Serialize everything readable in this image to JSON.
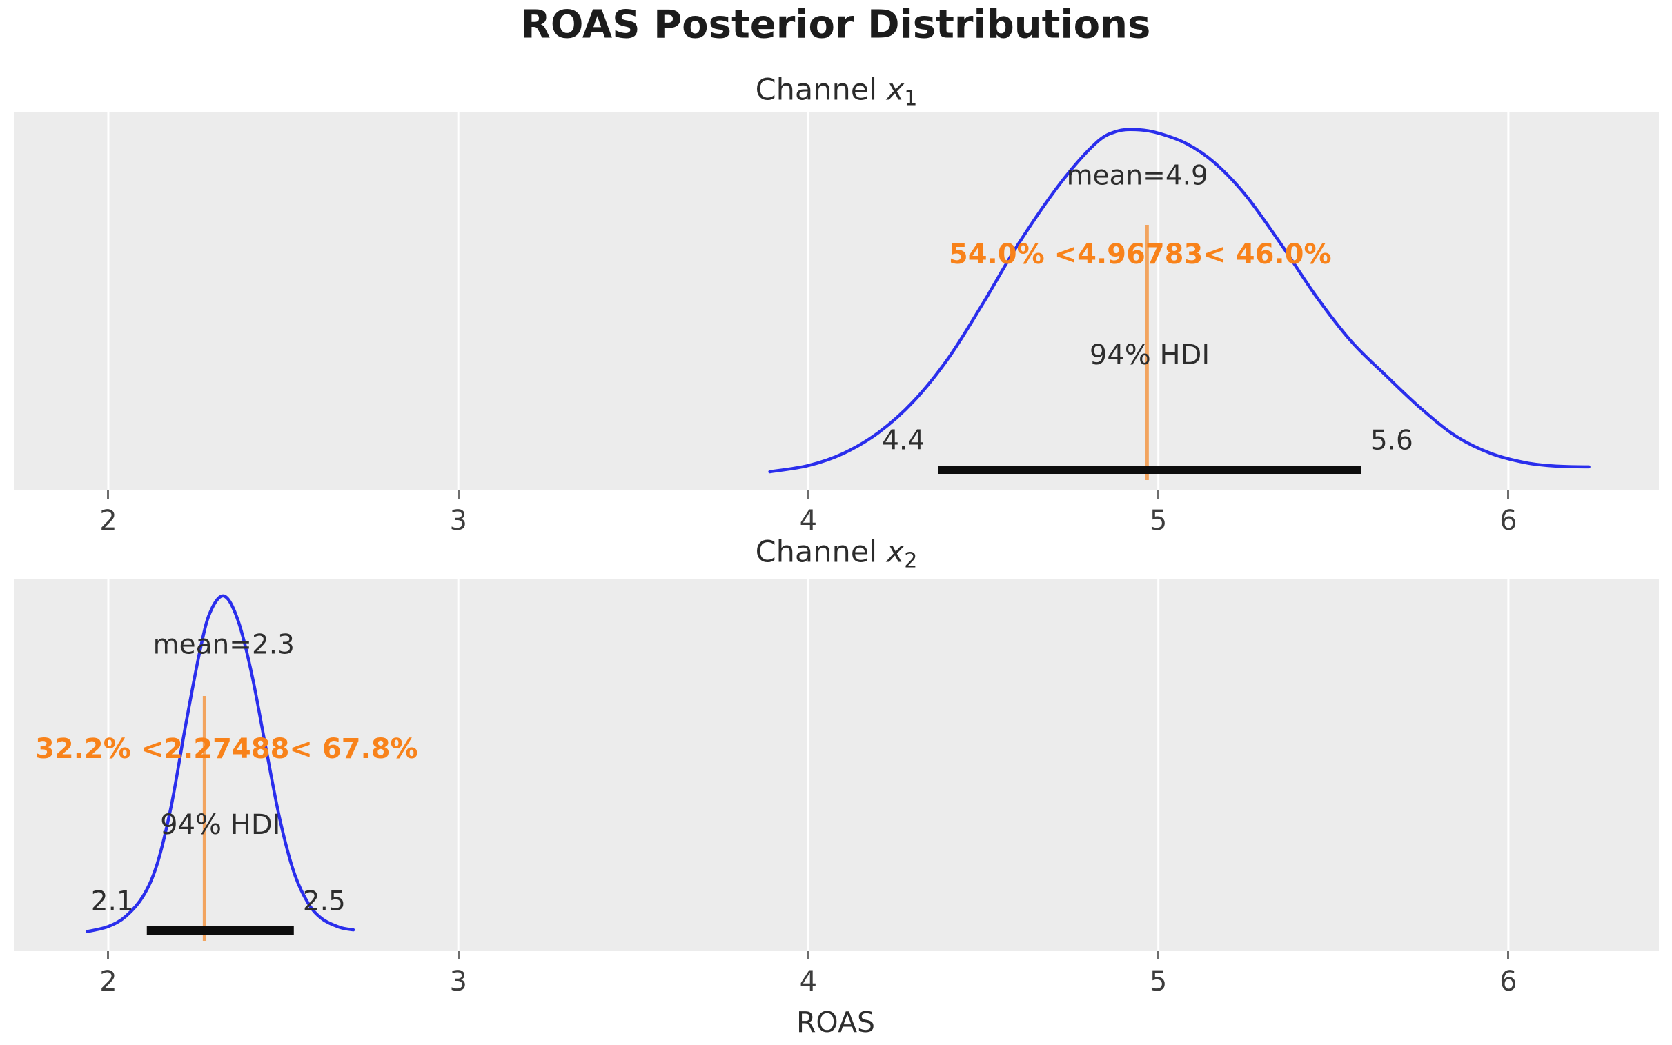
{
  "figure": {
    "title": "ROAS Posterior Distributions"
  },
  "x_axis": {
    "label": "ROAS",
    "ticks": [
      "2",
      "3",
      "4",
      "5",
      "6"
    ]
  },
  "colors": {
    "curve": "#2a2eec",
    "ref_text": "#f8821a",
    "ref_line": "#f2a45f",
    "hdi_bar": "#0d0d0d",
    "panel_bg": "#ececec",
    "grid": "#ffffff"
  },
  "chart_data": {
    "type": "kde",
    "title": "ROAS Posterior Distributions",
    "xlabel": "ROAS",
    "x_range": [
      1.73,
      6.43
    ],
    "x_ticks": [
      2,
      3,
      4,
      5,
      6
    ],
    "grid": true,
    "panels": [
      {
        "title": {
          "prefix": "Channel ",
          "var": "x",
          "sub": "1"
        },
        "mean": 4.9,
        "mean_label": "mean=4.9",
        "ref_value": 4.96783,
        "pct_below": "54.0%",
        "pct_above": "46.0%",
        "ref_label": "54.0% <4.96783< 46.0%",
        "hdi_prob": "94%",
        "hdi_label": "94% HDI",
        "hdi_interval": [
          4.37,
          5.58
        ],
        "hdi_lower_label": "4.4",
        "hdi_upper_label": "5.6",
        "peak_x": 4.94,
        "curve": [
          [
            3.89,
            0.012
          ],
          [
            4.0,
            0.03
          ],
          [
            4.1,
            0.065
          ],
          [
            4.2,
            0.125
          ],
          [
            4.3,
            0.215
          ],
          [
            4.4,
            0.34
          ],
          [
            4.5,
            0.5
          ],
          [
            4.6,
            0.67
          ],
          [
            4.72,
            0.845
          ],
          [
            4.82,
            0.96
          ],
          [
            4.88,
            0.995
          ],
          [
            4.94,
            1.0
          ],
          [
            5.0,
            0.99
          ],
          [
            5.08,
            0.96
          ],
          [
            5.16,
            0.905
          ],
          [
            5.25,
            0.81
          ],
          [
            5.35,
            0.67
          ],
          [
            5.45,
            0.52
          ],
          [
            5.55,
            0.39
          ],
          [
            5.65,
            0.29
          ],
          [
            5.75,
            0.195
          ],
          [
            5.85,
            0.115
          ],
          [
            5.95,
            0.065
          ],
          [
            6.05,
            0.038
          ],
          [
            6.14,
            0.028
          ],
          [
            6.23,
            0.026
          ]
        ]
      },
      {
        "title": {
          "prefix": "Channel ",
          "var": "x",
          "sub": "2"
        },
        "mean": 2.3,
        "mean_label": "mean=2.3",
        "ref_value": 2.27488,
        "pct_below": "32.2%",
        "pct_above": "67.8%",
        "ref_label": "32.2% <2.27488< 67.8%",
        "hdi_prob": "94%",
        "hdi_label": "94% HDI",
        "hdi_interval": [
          2.11,
          2.53
        ],
        "hdi_lower_label": "2.1",
        "hdi_upper_label": "2.5",
        "peak_x": 2.33,
        "curve": [
          [
            1.94,
            0.015
          ],
          [
            2.0,
            0.03
          ],
          [
            2.05,
            0.06
          ],
          [
            2.1,
            0.12
          ],
          [
            2.14,
            0.215
          ],
          [
            2.18,
            0.385
          ],
          [
            2.22,
            0.615
          ],
          [
            2.26,
            0.83
          ],
          [
            2.29,
            0.95
          ],
          [
            2.33,
            1.0
          ],
          [
            2.37,
            0.93
          ],
          [
            2.41,
            0.77
          ],
          [
            2.45,
            0.555
          ],
          [
            2.49,
            0.345
          ],
          [
            2.53,
            0.19
          ],
          [
            2.57,
            0.1
          ],
          [
            2.61,
            0.053
          ],
          [
            2.66,
            0.028
          ],
          [
            2.7,
            0.02
          ]
        ]
      }
    ]
  }
}
